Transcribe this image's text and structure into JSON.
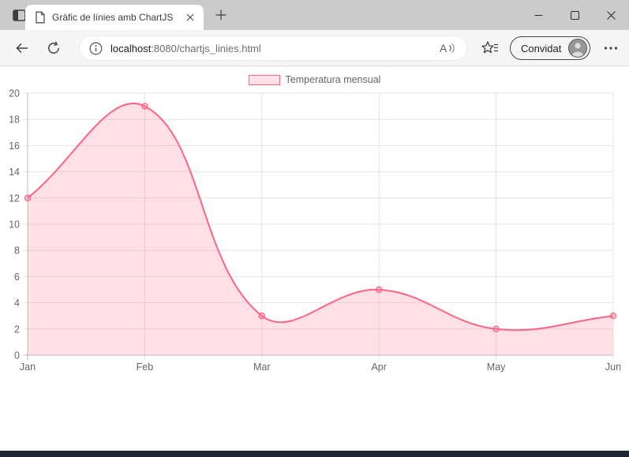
{
  "window": {
    "tab_title": "Gràfic de línies amb ChartJS"
  },
  "toolbar": {
    "url_host": "localhost",
    "url_path": ":8080/chartjs_linies.html",
    "profile_label": "Convidat"
  },
  "chart_data": {
    "type": "line",
    "title": "",
    "categories": [
      "Jan",
      "Feb",
      "Mar",
      "Apr",
      "May",
      "Jun"
    ],
    "series": [
      {
        "name": "Temperatura mensual",
        "values": [
          12,
          19,
          3,
          5,
          2,
          3
        ],
        "line_color": "#ff6384",
        "fill_color": "rgba(255,99,132,0.2)",
        "fill": true,
        "smooth": true,
        "tension": 0.4,
        "point_style": "circle"
      }
    ],
    "xlabel": "",
    "ylabel": "",
    "ylim": [
      0,
      20
    ],
    "ytick_step": 2,
    "legend_position": "top",
    "grid": true,
    "axis_text_color": "#666666",
    "grid_color": "rgba(0,0,0,0.1)",
    "zero_line_color": "rgba(0,0,0,0.25)"
  }
}
